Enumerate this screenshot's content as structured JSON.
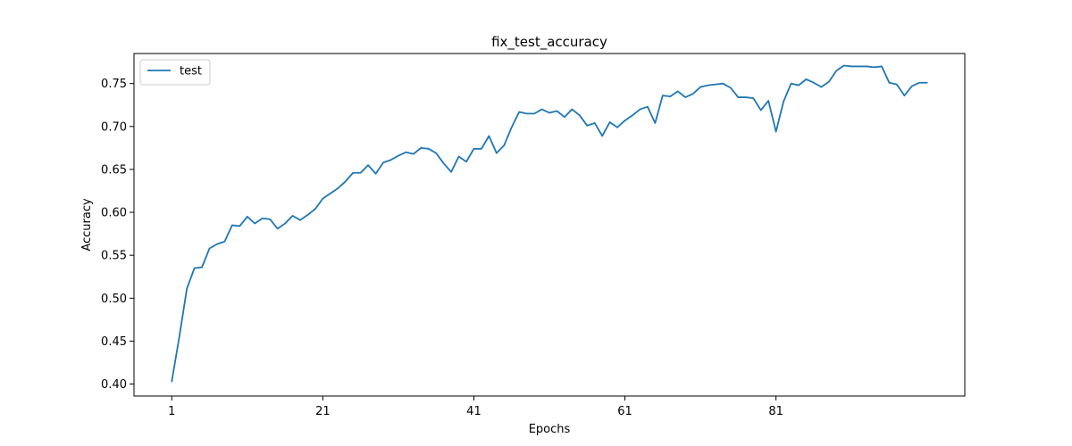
{
  "chart_data": {
    "type": "line",
    "title": "fix_test_accuracy",
    "xlabel": "Epochs",
    "ylabel": "Accuracy",
    "xlim": [
      -4,
      106
    ],
    "ylim": [
      0.386,
      0.785
    ],
    "xticks": [
      1,
      21,
      41,
      61,
      81
    ],
    "yticks": [
      0.4,
      0.45,
      0.5,
      0.55,
      0.6,
      0.65,
      0.7,
      0.75
    ],
    "ytick_labels": [
      "0.40",
      "0.45",
      "0.50",
      "0.55",
      "0.60",
      "0.65",
      "0.70",
      "0.75"
    ],
    "grid": false,
    "legend": {
      "position": "top-left"
    },
    "series": [
      {
        "name": "test",
        "color": "#1f77b4",
        "x": [
          1,
          2,
          3,
          4,
          5,
          6,
          7,
          8,
          9,
          10,
          11,
          12,
          13,
          14,
          15,
          16,
          17,
          18,
          19,
          20,
          21,
          22,
          23,
          24,
          25,
          26,
          27,
          28,
          29,
          30,
          31,
          32,
          33,
          34,
          35,
          36,
          37,
          38,
          39,
          40,
          41,
          42,
          43,
          44,
          45,
          46,
          47,
          48,
          49,
          50,
          51,
          52,
          53,
          54,
          55,
          56,
          57,
          58,
          59,
          60,
          61,
          62,
          63,
          64,
          65,
          66,
          67,
          68,
          69,
          70,
          71,
          72,
          73,
          74,
          75,
          76,
          77,
          78,
          79,
          80,
          81,
          82,
          83,
          84,
          85,
          86,
          87,
          88,
          89,
          90,
          91,
          92,
          93,
          94,
          95,
          96,
          97,
          98,
          99,
          100,
          101
        ],
        "values": [
          0.403,
          0.455,
          0.511,
          0.535,
          0.536,
          0.558,
          0.563,
          0.566,
          0.585,
          0.584,
          0.595,
          0.587,
          0.593,
          0.592,
          0.581,
          0.587,
          0.596,
          0.591,
          0.597,
          0.604,
          0.616,
          0.622,
          0.628,
          0.636,
          0.646,
          0.646,
          0.655,
          0.645,
          0.658,
          0.661,
          0.666,
          0.67,
          0.668,
          0.675,
          0.674,
          0.669,
          0.657,
          0.647,
          0.665,
          0.659,
          0.674,
          0.674,
          0.689,
          0.669,
          0.678,
          0.699,
          0.717,
          0.715,
          0.715,
          0.72,
          0.716,
          0.718,
          0.711,
          0.72,
          0.713,
          0.701,
          0.704,
          0.689,
          0.705,
          0.699,
          0.707,
          0.713,
          0.72,
          0.723,
          0.704,
          0.736,
          0.735,
          0.741,
          0.734,
          0.738,
          0.746,
          0.748,
          0.749,
          0.75,
          0.745,
          0.734,
          0.734,
          0.733,
          0.719,
          0.73,
          0.694,
          0.729,
          0.75,
          0.748,
          0.755,
          0.751,
          0.746,
          0.752,
          0.765,
          0.771,
          0.77,
          0.77,
          0.77,
          0.769,
          0.77,
          0.751,
          0.749,
          0.736,
          0.747,
          0.751,
          0.751
        ]
      }
    ]
  }
}
